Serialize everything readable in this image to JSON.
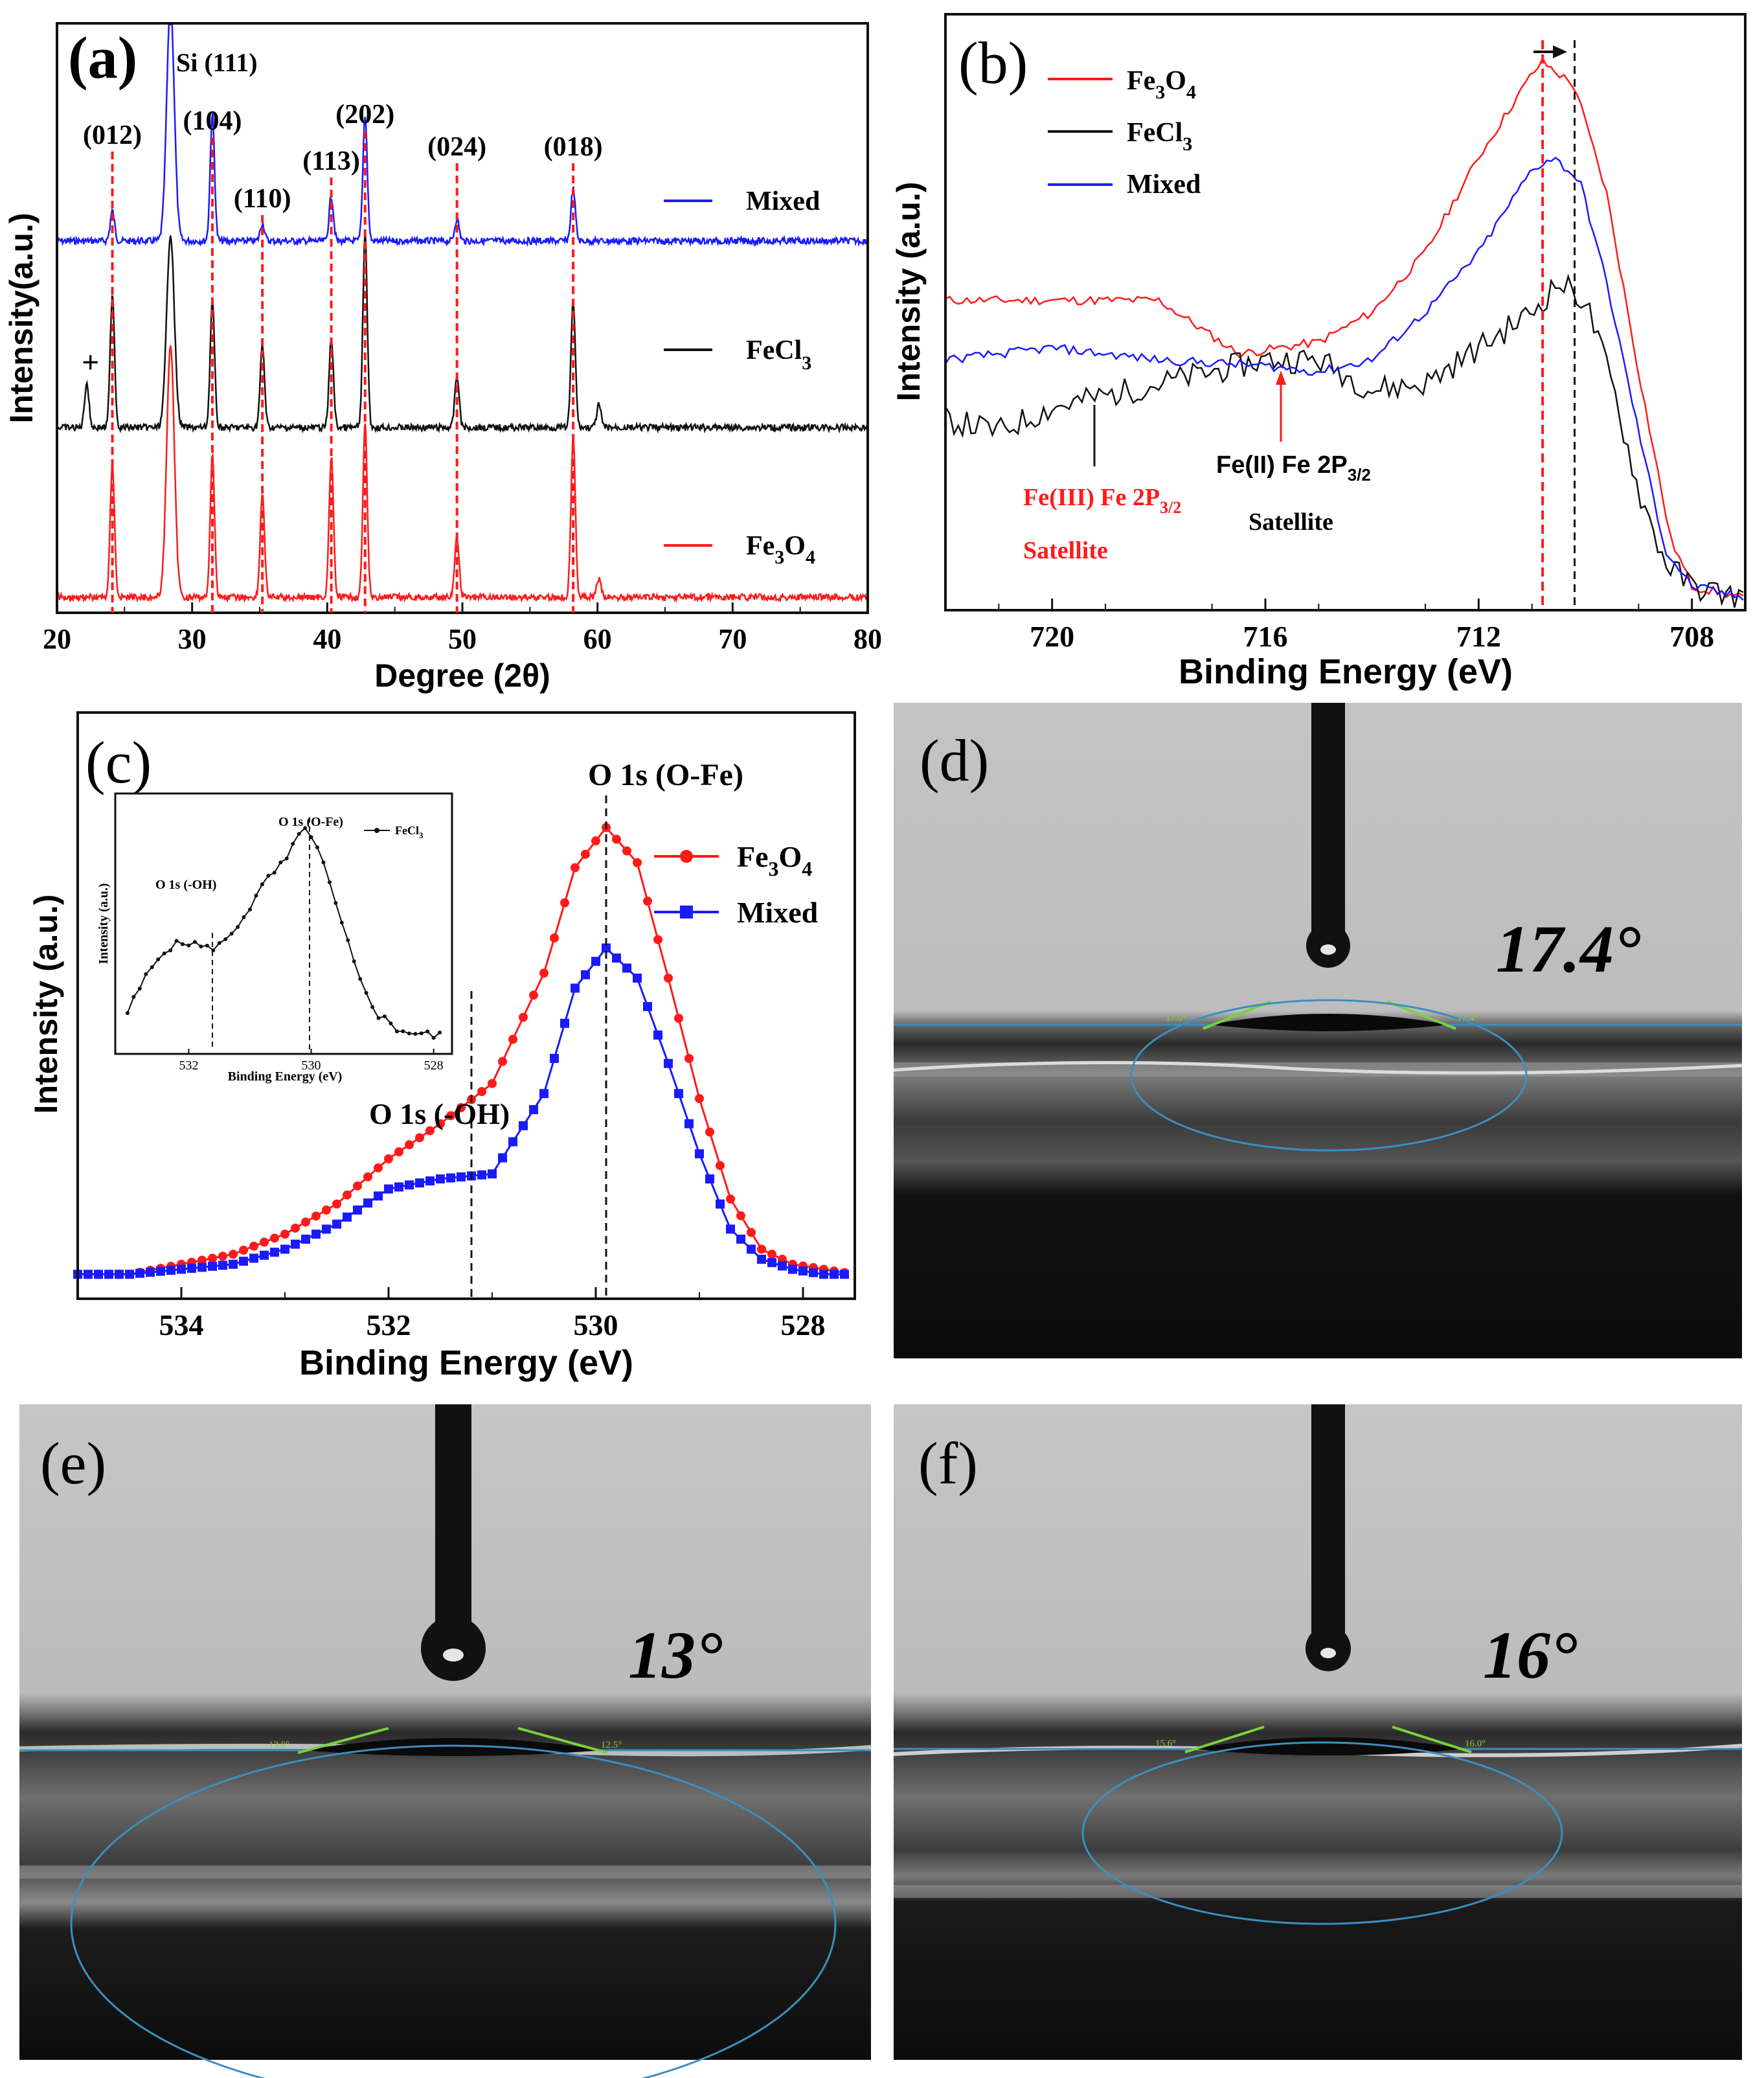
{
  "panel_a": {
    "label": "(a)",
    "annotations": {
      "si": "Si (111)",
      "hkl": [
        {
          "text": "(012)",
          "x": 24.1
        },
        {
          "text": "(104)",
          "x": 31.5
        },
        {
          "text": "(110)",
          "x": 35.2
        },
        {
          "text": "(113)",
          "x": 40.3
        },
        {
          "text": "(202)",
          "x": 42.8
        },
        {
          "text": "(024)",
          "x": 49.6
        },
        {
          "text": "(018)",
          "x": 58.2
        }
      ],
      "plus": "+"
    },
    "legend": {
      "mixed": "Mixed",
      "fecl3_base": "FeCl",
      "fecl3_sub": "3",
      "fe3o4_a": "Fe",
      "fe3o4_s1": "3",
      "fe3o4_b": "O",
      "fe3o4_s2": "4"
    }
  },
  "panel_b": {
    "label": "(b)",
    "legend": {
      "fe3o4_a": "Fe",
      "fe3o4_s1": "3",
      "fe3o4_b": "O",
      "fe3o4_s2": "4",
      "fecl3_base": "FeCl",
      "fecl3_sub": "3",
      "mixed": "Mixed"
    },
    "annotations": {
      "fe3_line1": "Fe(III) Fe 2P",
      "fe3_sub": "3/2",
      "fe3_line2": "Satellite",
      "fe2_line1": "Fe(II) Fe 2P",
      "fe2_sub": "3/2",
      "fe2_line2": "Satellite"
    }
  },
  "panel_c": {
    "label": "(c)",
    "annotations": {
      "ofe": "O 1s (O-Fe)",
      "oh": "O 1s (-OH)"
    },
    "legend": {
      "fe3o4_a": "Fe",
      "fe3o4_s1": "3",
      "fe3o4_b": "O",
      "fe3o4_s2": "4",
      "mixed": "Mixed"
    },
    "inset": {
      "ofe": "O 1s (O-Fe)",
      "oh": "O 1s (-OH)",
      "legend_base": "FeCl",
      "legend_sub": "3",
      "ylabel": "Intensity (a.u.)",
      "xlabel": "Binding Energy (eV)",
      "ticks": [
        "532",
        "530",
        "528"
      ]
    }
  },
  "photo_d": {
    "label": "(d)",
    "angle": "17.4°",
    "left_reading": "17.0°",
    "right_reading": "17.4°"
  },
  "photo_e": {
    "label": "(e)",
    "angle": "13°",
    "left_reading": "13.0°",
    "right_reading": "12.5°"
  },
  "photo_f": {
    "label": "(f)",
    "angle": "16°",
    "left_reading": "15.6°",
    "right_reading": "16.0°"
  },
  "colors": {
    "red": "#ff1a1a",
    "blue": "#1a1aff",
    "black": "#111111",
    "green": "#7ad13a",
    "cyan": "#3a8fc0"
  },
  "chart_data": [
    {
      "type": "line",
      "title": "",
      "xlabel": "Degree (2θ)",
      "ylabel": "Intensity(a.u.)",
      "xlim": [
        20,
        80
      ],
      "xticks": [
        "20",
        "30",
        "40",
        "50",
        "60",
        "70",
        "80"
      ],
      "series": [
        {
          "name": "Mixed",
          "peaks": [
            [
              24.1,
              0.2
            ],
            [
              28.4,
              1.6
            ],
            [
              31.5,
              0.85
            ],
            [
              35.2,
              0.12
            ],
            [
              40.3,
              0.3
            ],
            [
              42.8,
              0.85
            ],
            [
              49.6,
              0.15
            ],
            [
              58.2,
              0.35
            ]
          ]
        },
        {
          "name": "FeCl3",
          "peaks": [
            [
              22.2,
              0.3
            ],
            [
              24.1,
              0.9
            ],
            [
              28.4,
              1.3
            ],
            [
              31.5,
              0.85
            ],
            [
              35.2,
              0.55
            ],
            [
              40.3,
              0.6
            ],
            [
              42.8,
              1.3
            ],
            [
              49.6,
              0.35
            ],
            [
              58.2,
              0.85
            ],
            [
              60.1,
              0.15
            ]
          ]
        },
        {
          "name": "Fe3O4",
          "peaks": [
            [
              24.1,
              0.9
            ],
            [
              28.4,
              1.7
            ],
            [
              31.5,
              0.95
            ],
            [
              35.2,
              0.7
            ],
            [
              40.3,
              0.95
            ],
            [
              42.8,
              1.15
            ],
            [
              49.6,
              0.4
            ],
            [
              58.2,
              1.1
            ],
            [
              60.1,
              0.12
            ]
          ]
        }
      ]
    },
    {
      "type": "line",
      "title": "",
      "xlabel": "Binding Energy (eV)",
      "ylabel": "Intensity (a.u.)",
      "xlim": [
        722,
        707
      ],
      "xticks": [
        "720",
        "716",
        "712",
        "708"
      ],
      "series": [
        {
          "name": "Fe3O4",
          "x": [
            722,
            720,
            718,
            716.5,
            715,
            714,
            713,
            712,
            711,
            710.8,
            710.2,
            709.6,
            709,
            708.4,
            708,
            707
          ],
          "y": [
            0.52,
            0.52,
            0.52,
            0.43,
            0.45,
            0.5,
            0.6,
            0.76,
            0.9,
            0.92,
            0.88,
            0.7,
            0.4,
            0.12,
            0.04,
            0.02
          ]
        },
        {
          "name": "FeCl3",
          "x": [
            722,
            721,
            720,
            719,
            718,
            716,
            715,
            714,
            713,
            712,
            711,
            710.5,
            710,
            709.5,
            709,
            708.5,
            708,
            707
          ],
          "y": [
            0.32,
            0.3,
            0.34,
            0.36,
            0.38,
            0.42,
            0.42,
            0.37,
            0.38,
            0.44,
            0.5,
            0.55,
            0.52,
            0.38,
            0.2,
            0.08,
            0.04,
            0.02
          ]
        },
        {
          "name": "Mixed",
          "x": [
            722,
            720,
            718,
            716,
            715,
            714,
            713,
            712,
            711,
            710.6,
            710.1,
            709.6,
            709,
            708.5,
            708,
            707
          ],
          "y": [
            0.42,
            0.44,
            0.42,
            0.41,
            0.4,
            0.42,
            0.5,
            0.6,
            0.74,
            0.76,
            0.72,
            0.55,
            0.3,
            0.1,
            0.04,
            0.02
          ]
        }
      ],
      "vlines": [
        710.8,
        710.2
      ]
    },
    {
      "type": "line",
      "title": "",
      "xlabel": "Binding Energy (eV)",
      "ylabel": "Intensity (a.u.)",
      "xlim": [
        535,
        527.5
      ],
      "xticks": [
        "534",
        "532",
        "530",
        "528"
      ],
      "series": [
        {
          "name": "Fe3O4",
          "x": [
            535,
            534.5,
            534,
            533.5,
            533,
            532.5,
            532,
            531.5,
            531,
            530.5,
            530.2,
            529.9,
            529.6,
            529.3,
            529,
            528.7,
            528.4,
            528.1,
            527.8,
            527.5
          ],
          "y": [
            0.01,
            0.01,
            0.03,
            0.05,
            0.09,
            0.15,
            0.24,
            0.31,
            0.39,
            0.61,
            0.82,
            0.9,
            0.83,
            0.6,
            0.36,
            0.16,
            0.06,
            0.03,
            0.02,
            0.01
          ]
        },
        {
          "name": "Mixed",
          "x": [
            535,
            534.5,
            534,
            533.5,
            533,
            532.5,
            532,
            531.5,
            531,
            530.5,
            530.2,
            529.9,
            529.6,
            529.3,
            529,
            528.7,
            528.4,
            528.1,
            527.8,
            527.5
          ],
          "y": [
            0.01,
            0.01,
            0.02,
            0.03,
            0.06,
            0.11,
            0.18,
            0.2,
            0.21,
            0.37,
            0.58,
            0.66,
            0.6,
            0.43,
            0.25,
            0.1,
            0.04,
            0.02,
            0.01,
            0.01
          ]
        }
      ],
      "vlines": [
        529.9,
        531.2
      ],
      "inset_series": {
        "name": "FeCl3",
        "x": [
          533,
          532.7,
          532.4,
          532,
          531.7,
          531.4,
          531,
          530.7,
          530.4,
          530.1,
          529.8,
          529.5,
          529.2,
          528.9,
          528.6,
          528.3,
          528
        ],
        "y": [
          0.15,
          0.3,
          0.42,
          0.45,
          0.42,
          0.45,
          0.6,
          0.72,
          0.8,
          0.95,
          0.78,
          0.52,
          0.28,
          0.14,
          0.08,
          0.06,
          0.05
        ]
      }
    }
  ]
}
